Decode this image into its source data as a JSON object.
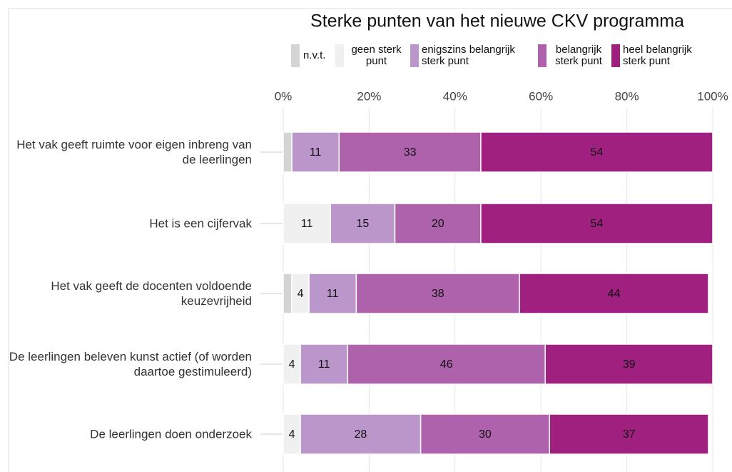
{
  "chart_data": {
    "type": "stacked-bar-horizontal",
    "title": "Sterke punten van het nieuwe CKV programma",
    "categories": [
      "Het vak geeft ruimte voor eigen inbreng van de leerlingen",
      "Het is een cijfervak",
      "Het vak geeft de docenten voldoende keuzevrijheid",
      "De leerlingen beleven kunst actief (of worden daartoe gestimuleerd)",
      "De leerlingen doen onderzoek"
    ],
    "series": [
      {
        "name": "n.v.t.",
        "color": "#d4d4d4",
        "values": [
          2,
          0,
          2,
          0,
          0
        ]
      },
      {
        "name": "geen sterk punt",
        "color": "#f0f0f0",
        "values": [
          0,
          11,
          4,
          4,
          4
        ]
      },
      {
        "name": "enigszins belangrijk sterk punt",
        "color": "#bb96cb",
        "values": [
          11,
          15,
          11,
          11,
          28
        ]
      },
      {
        "name": "belangrijk sterk punt",
        "color": "#ad62ab",
        "values": [
          33,
          20,
          38,
          46,
          30
        ]
      },
      {
        "name": "heel belangrijk sterk punt",
        "color": "#a0207f",
        "values": [
          54,
          54,
          44,
          39,
          37
        ]
      }
    ],
    "xlim": [
      0,
      100
    ],
    "xticks": [
      {
        "value": 0,
        "label": "0%"
      },
      {
        "value": 20,
        "label": "20%"
      },
      {
        "value": 40,
        "label": "40%"
      },
      {
        "value": 60,
        "label": "60%"
      },
      {
        "value": 80,
        "label": "80%"
      },
      {
        "value": 100,
        "label": "100%"
      }
    ],
    "grid": true,
    "legend": "top"
  }
}
